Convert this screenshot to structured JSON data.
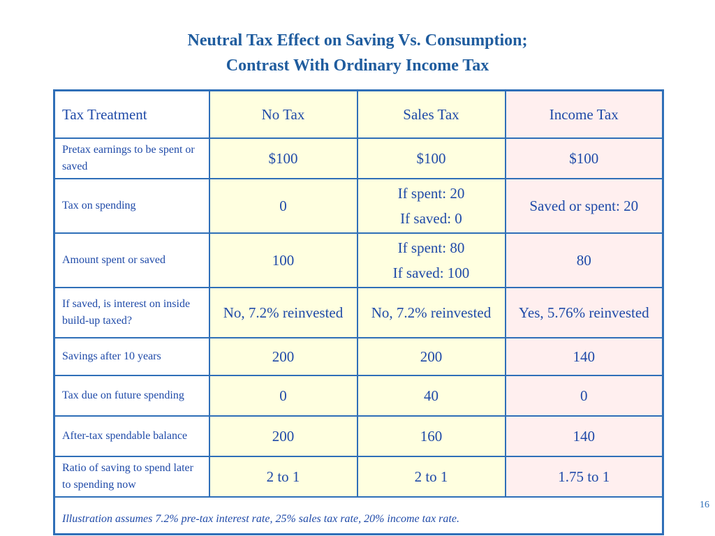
{
  "title": {
    "line1": "Neutral Tax Effect on Saving Vs. Consumption;",
    "line2": "Contrast With Ordinary Income Tax"
  },
  "table": {
    "headers": [
      "Tax Treatment",
      "No Tax",
      "Sales Tax",
      "Income Tax"
    ],
    "rows": [
      {
        "label": "Pretax earnings to be spent or saved",
        "none": "$100",
        "sales": "$100",
        "income": "$100"
      },
      {
        "label": "Tax on spending",
        "none": "0",
        "sales_l1": "If spent: 20",
        "sales_l2": "If saved: 0",
        "income": "Saved or spent: 20"
      },
      {
        "label": "Amount spent or saved",
        "none": "100",
        "sales_l1": "If spent: 80",
        "sales_l2": "If saved: 100",
        "income": "80"
      },
      {
        "label": "If saved, is interest on inside build-up taxed?",
        "none": "No, 7.2% reinvested",
        "sales": "No, 7.2% reinvested",
        "income": "Yes, 5.76% reinvested"
      },
      {
        "label": "Savings after 10 years",
        "none": "200",
        "sales": "200",
        "income": "140"
      },
      {
        "label": "Tax due on future spending",
        "none": "0",
        "sales": "40",
        "income": "0"
      },
      {
        "label": "After-tax spendable balance",
        "none": "200",
        "sales": "160",
        "income": "140"
      },
      {
        "label": "Ratio of saving to spend later to spending now",
        "none": "2 to 1",
        "sales": "2 to 1",
        "income": "1.75 to 1"
      }
    ],
    "footnote": "Illustration assumes 7.2% pre-tax interest rate, 25% sales tax rate, 20% income tax rate."
  },
  "page_number": "16",
  "colors": {
    "title": "#1f5c9e",
    "border": "#2f6fb8",
    "text": "#1f4aa8",
    "no_tax_bg": "#ffffe0",
    "sales_tax_bg": "#ffffe0",
    "income_tax_bg": "#ffefef"
  }
}
